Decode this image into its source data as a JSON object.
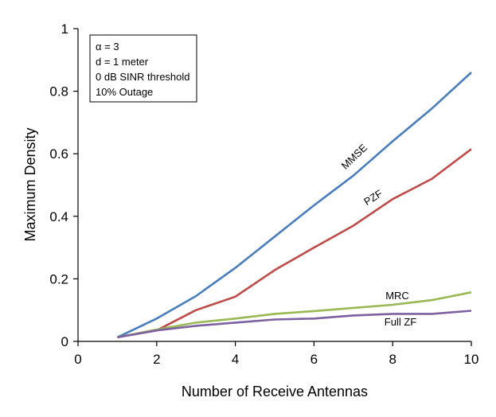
{
  "chart_data": {
    "type": "line",
    "title": "",
    "xlabel": "Number of Receive Antennas",
    "ylabel": "Maximum Density",
    "xlim": [
      0,
      10
    ],
    "ylim": [
      0,
      1
    ],
    "xticks": [
      0,
      2,
      4,
      6,
      8,
      10
    ],
    "yticks": [
      0,
      0.2,
      0.4,
      0.6,
      0.8,
      1
    ],
    "ytick_labels": [
      "0",
      "0.2",
      "0.4",
      "0.6",
      "0.8",
      "1"
    ],
    "xtick_labels": [
      "0",
      "2",
      "4",
      "6",
      "8",
      "10"
    ],
    "x": [
      1,
      2,
      3,
      4,
      5,
      6,
      7,
      8,
      9,
      10
    ],
    "series": [
      {
        "name": "MMSE",
        "color": "#4a7ebb",
        "values": [
          0.013,
          0.073,
          0.145,
          0.235,
          0.335,
          0.435,
          0.53,
          0.64,
          0.745,
          0.86
        ]
      },
      {
        "name": "PZF",
        "color": "#be4b48",
        "values": [
          0.013,
          0.035,
          0.1,
          0.143,
          0.228,
          0.3,
          0.37,
          0.455,
          0.52,
          0.615
        ]
      },
      {
        "name": "MRC",
        "color": "#98b954",
        "values": [
          0.013,
          0.038,
          0.06,
          0.073,
          0.088,
          0.097,
          0.107,
          0.117,
          0.132,
          0.157
        ]
      },
      {
        "name": "Full ZF",
        "color": "#7d60a0",
        "values": [
          0.013,
          0.035,
          0.05,
          0.06,
          0.07,
          0.073,
          0.083,
          0.088,
          0.088,
          0.098
        ]
      }
    ],
    "annotation_box": [
      "α = 3",
      "d = 1 meter",
      "0 dB SINR threshold",
      "10% Outage"
    ],
    "grid": false
  }
}
